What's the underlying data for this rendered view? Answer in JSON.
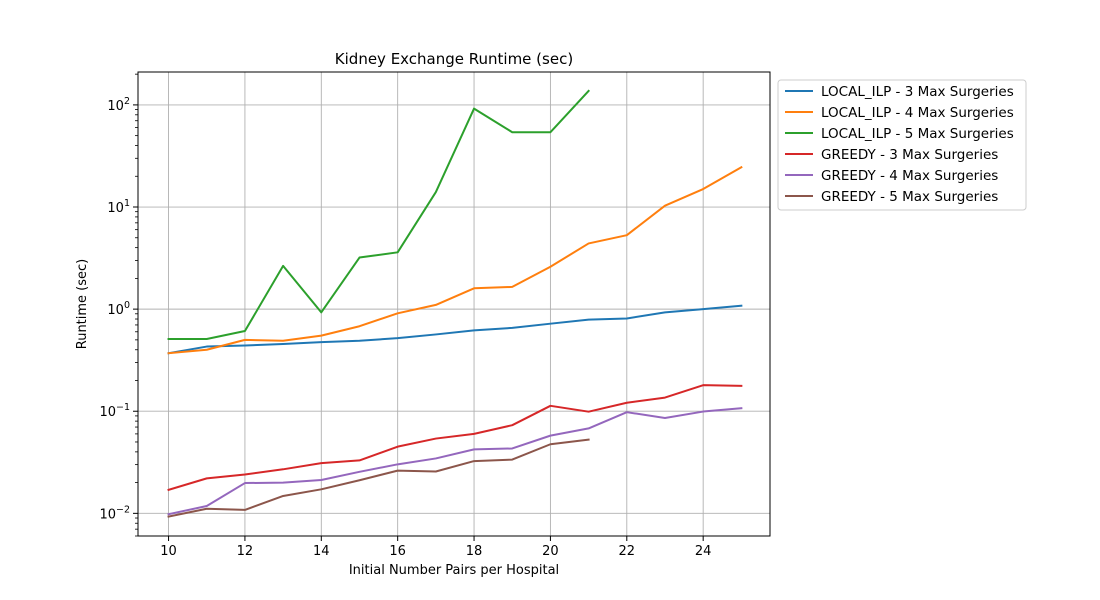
{
  "chart_data": {
    "type": "line",
    "title": "Kidney Exchange Runtime (sec)",
    "xlabel": "Initial Number Pairs per Hospital",
    "ylabel": "Runtime (sec)",
    "x_scale": "linear",
    "y_scale": "log",
    "xlim": [
      9.2,
      25.75
    ],
    "ylim": [
      0.006,
      210
    ],
    "grid": true,
    "legend_location": "outside upper right",
    "x_ticks": [
      10,
      12,
      14,
      16,
      18,
      20,
      22,
      24
    ],
    "x_tick_labels": [
      "10",
      "12",
      "14",
      "16",
      "18",
      "20",
      "22",
      "24"
    ],
    "y_ticks": [
      {
        "value": 0.01,
        "mantissa": "10",
        "exp": "−2"
      },
      {
        "value": 0.1,
        "mantissa": "10",
        "exp": "−1"
      },
      {
        "value": 1,
        "mantissa": "10",
        "exp": "0"
      },
      {
        "value": 10,
        "mantissa": "10",
        "exp": "1"
      },
      {
        "value": 100,
        "mantissa": "10",
        "exp": "2"
      }
    ],
    "series": [
      {
        "name": "LOCAL_ILP - 3 Max Surgeries",
        "color": "#1f77b4",
        "x": [
          10,
          11,
          12,
          13,
          14,
          15,
          16,
          17,
          18,
          19,
          20,
          21,
          22,
          23,
          24,
          25
        ],
        "values": [
          0.37,
          0.43,
          0.44,
          0.455,
          0.475,
          0.49,
          0.52,
          0.565,
          0.62,
          0.655,
          0.72,
          0.79,
          0.81,
          0.93,
          1.0,
          1.08
        ]
      },
      {
        "name": "LOCAL_ILP - 4 Max Surgeries",
        "color": "#ff7f0e",
        "x": [
          10,
          11,
          12,
          13,
          14,
          15,
          16,
          17,
          18,
          19,
          20,
          21,
          22,
          23,
          24,
          25
        ],
        "values": [
          0.37,
          0.4,
          0.5,
          0.49,
          0.55,
          0.68,
          0.91,
          1.1,
          1.6,
          1.65,
          2.6,
          4.4,
          5.3,
          10.3,
          15.0,
          24.5
        ]
      },
      {
        "name": "LOCAL_ILP - 5 Max Surgeries",
        "color": "#2ca02c",
        "x": [
          10,
          11,
          12,
          13,
          14,
          15,
          16,
          17,
          18,
          19,
          20,
          21
        ],
        "values": [
          0.51,
          0.51,
          0.61,
          2.65,
          0.93,
          3.2,
          3.6,
          14.0,
          92.0,
          54.0,
          54.0,
          137.0
        ]
      },
      {
        "name": "GREEDY - 3 Max Surgeries",
        "color": "#d62728",
        "x": [
          10,
          11,
          12,
          13,
          14,
          15,
          16,
          17,
          18,
          19,
          20,
          21,
          22,
          23,
          24,
          25
        ],
        "values": [
          0.017,
          0.022,
          0.024,
          0.027,
          0.031,
          0.033,
          0.045,
          0.054,
          0.06,
          0.073,
          0.113,
          0.099,
          0.121,
          0.136,
          0.18,
          0.177
        ]
      },
      {
        "name": "GREEDY - 4 Max Surgeries",
        "color": "#9467bd",
        "x": [
          10,
          11,
          12,
          13,
          14,
          15,
          16,
          17,
          18,
          19,
          20,
          21,
          22,
          23,
          24,
          25
        ],
        "values": [
          0.0098,
          0.0118,
          0.0198,
          0.02,
          0.0212,
          0.0255,
          0.0302,
          0.0345,
          0.0423,
          0.0432,
          0.0577,
          0.0679,
          0.0979,
          0.0859,
          0.0993,
          0.107
        ]
      },
      {
        "name": "GREEDY - 5 Max Surgeries",
        "color": "#8c564b",
        "x": [
          10,
          11,
          12,
          13,
          14,
          15,
          16,
          17,
          18,
          19,
          20,
          21
        ],
        "values": [
          0.0093,
          0.0111,
          0.0108,
          0.0148,
          0.0172,
          0.0211,
          0.0262,
          0.0257,
          0.0325,
          0.0336,
          0.0475,
          0.0527
        ]
      }
    ]
  }
}
